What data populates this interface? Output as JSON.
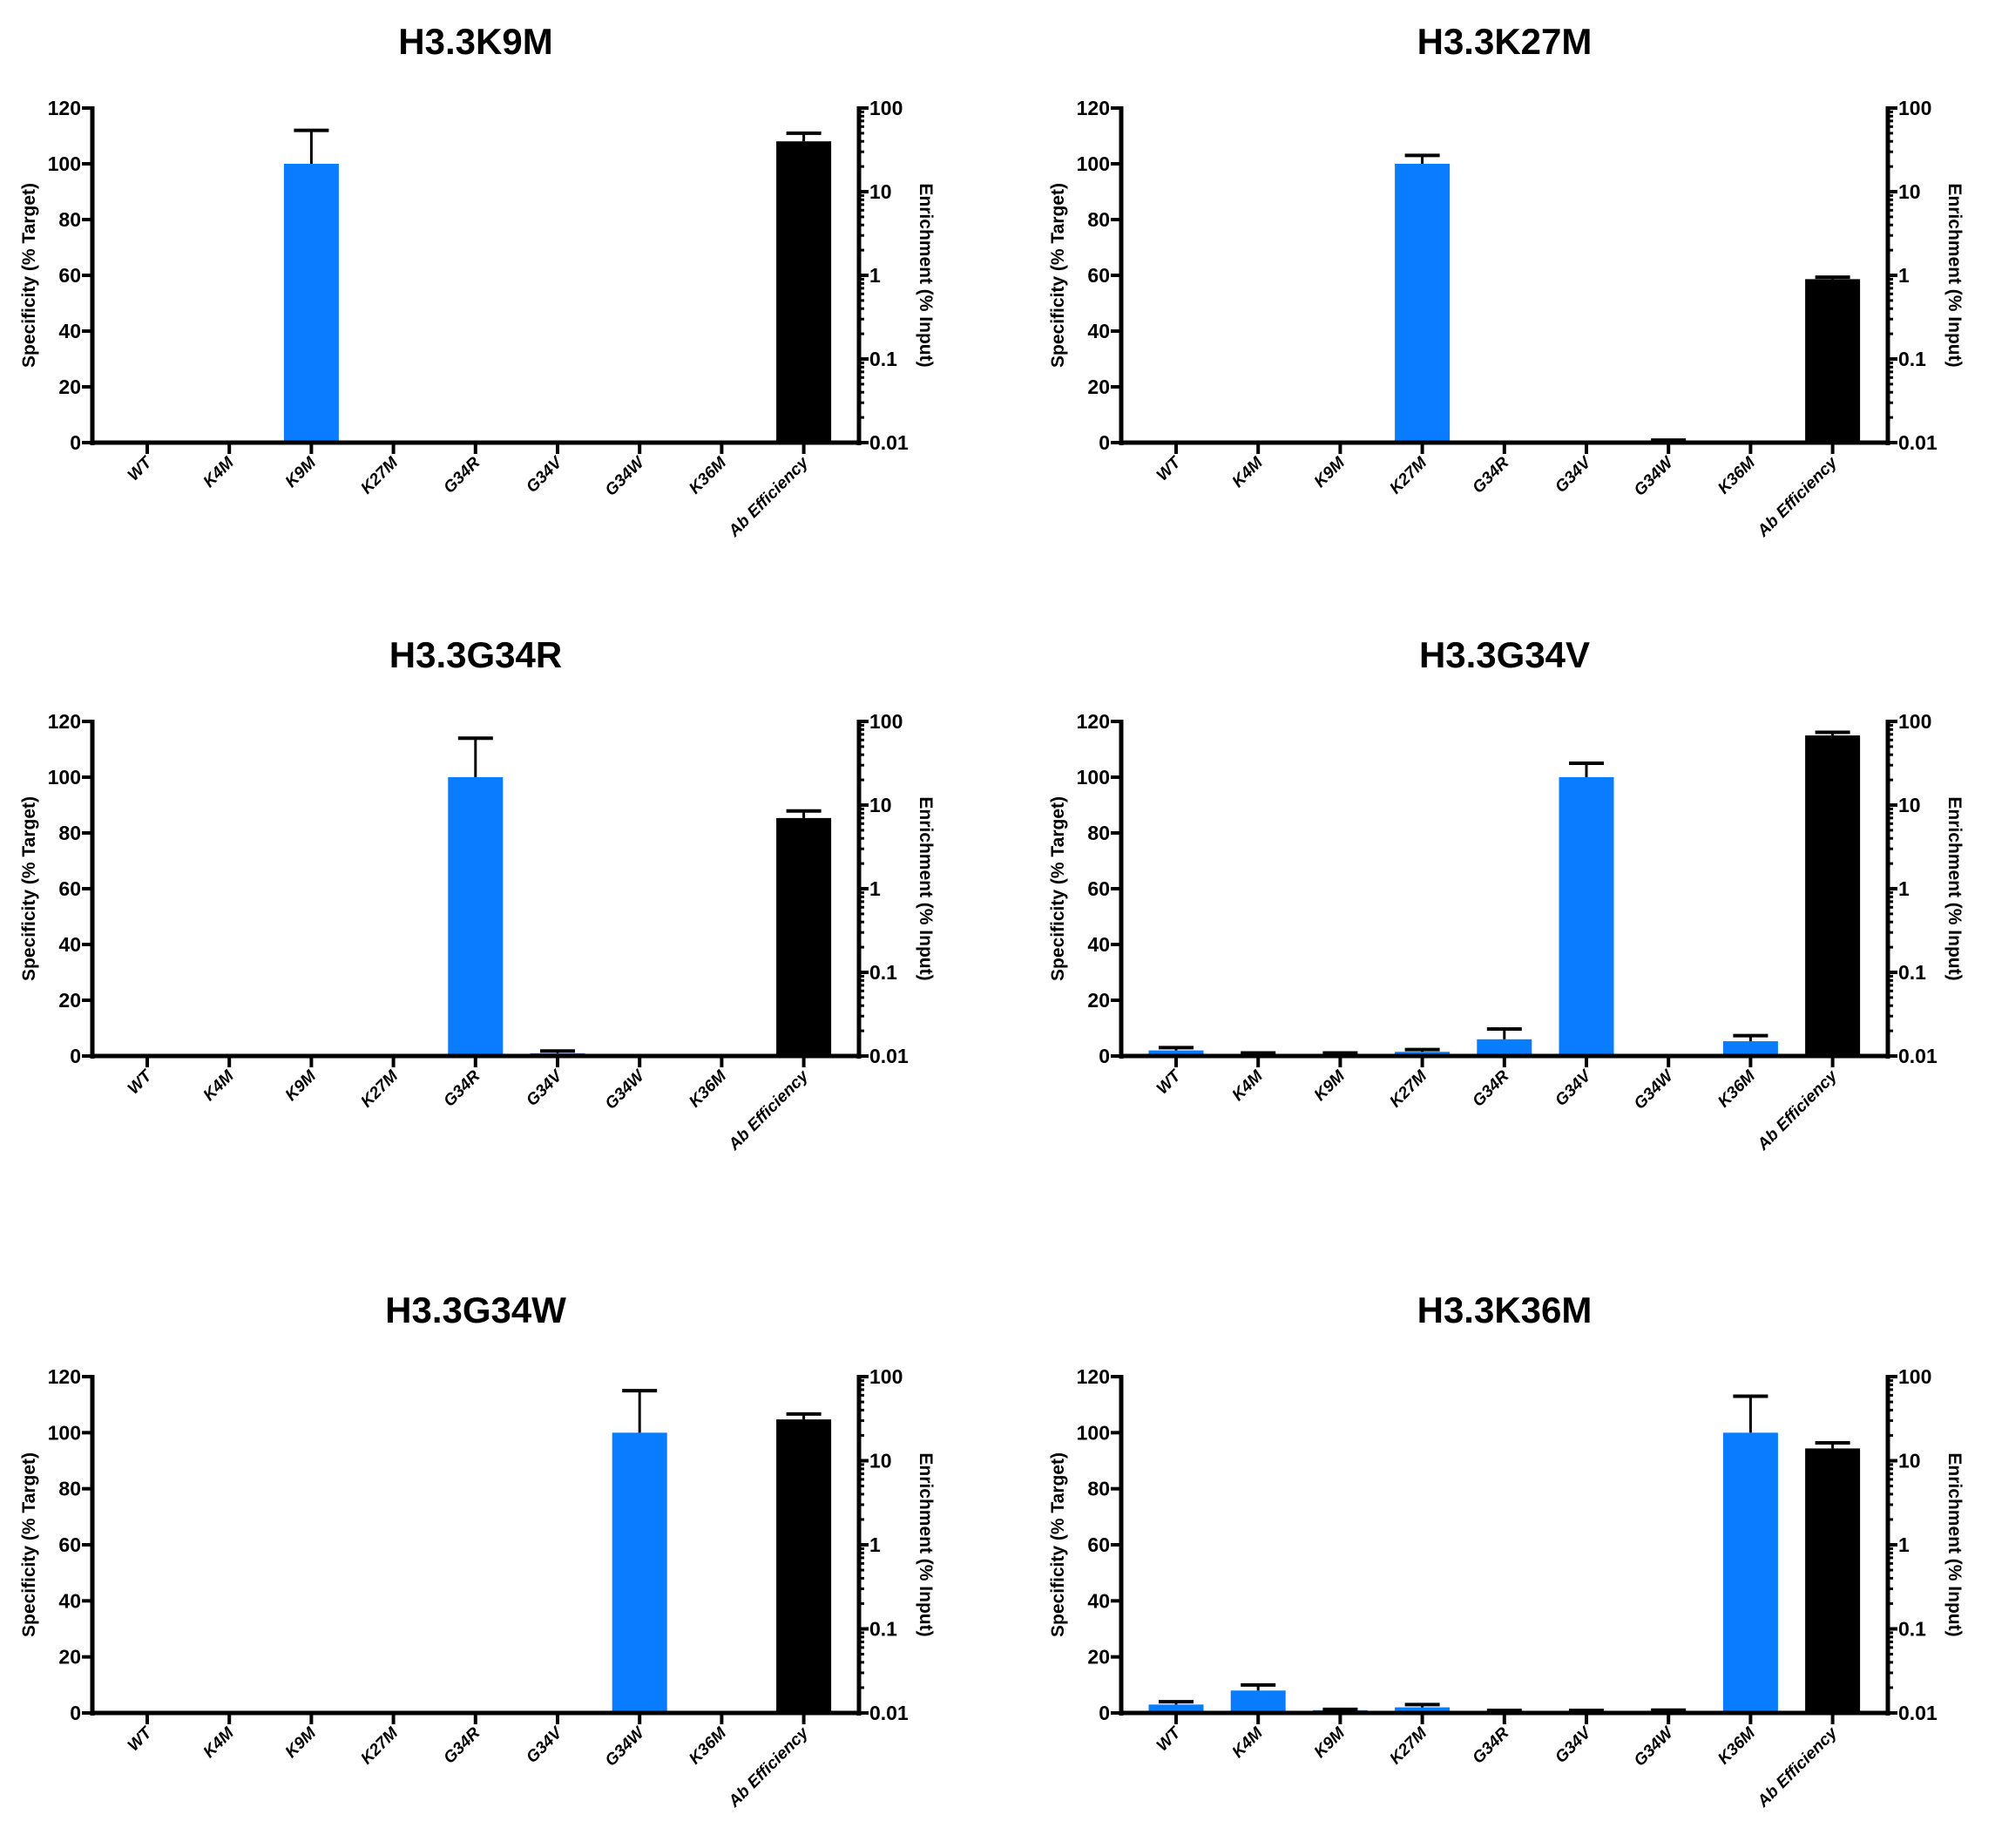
{
  "chart_data": [
    {
      "type": "bar",
      "title": "H3.3K9M",
      "categories": [
        "WT",
        "K4M",
        "K9M",
        "K27M",
        "G34R",
        "G34V",
        "G34W",
        "K36M",
        "Ab Efficiency"
      ],
      "ylabel": "Specificity (% Target)",
      "y2label": "Enrichment (% Input)",
      "ylim": [
        0,
        120
      ],
      "yticks": [
        "0",
        "20",
        "40",
        "60",
        "80",
        "100",
        "120"
      ],
      "y2lim": [
        0.01,
        100
      ],
      "y2scale": "log",
      "y2ticks": [
        "0.01",
        "0.1",
        "1",
        "10",
        "100"
      ],
      "series": [
        {
          "name": "Specificity",
          "axis": "left",
          "color": "#0a7cff",
          "values": [
            0,
            0,
            100,
            0,
            0,
            0,
            0,
            0,
            null
          ],
          "errors": [
            0,
            0,
            12,
            0,
            0,
            0,
            0,
            0,
            null
          ]
        },
        {
          "name": "Ab Efficiency",
          "axis": "right",
          "color": "#000000",
          "values": [
            null,
            null,
            null,
            null,
            null,
            null,
            null,
            null,
            40
          ],
          "error_upper": [
            null,
            null,
            null,
            null,
            null,
            null,
            null,
            null,
            50
          ]
        }
      ]
    },
    {
      "type": "bar",
      "title": "H3.3K27M",
      "categories": [
        "WT",
        "K4M",
        "K9M",
        "K27M",
        "G34R",
        "G34V",
        "G34W",
        "K36M",
        "Ab Efficiency"
      ],
      "ylabel": "Specificity (% Target)",
      "y2label": "Enrichment (% Input)",
      "ylim": [
        0,
        120
      ],
      "yticks": [
        "0",
        "20",
        "40",
        "60",
        "80",
        "100",
        "120"
      ],
      "y2lim": [
        0.01,
        100
      ],
      "y2scale": "log",
      "y2ticks": [
        "0.01",
        "0.1",
        "1",
        "10",
        "100"
      ],
      "series": [
        {
          "name": "Specificity",
          "axis": "left",
          "color": "#0a7cff",
          "values": [
            0,
            0,
            0,
            100,
            0,
            0,
            0.3,
            0,
            null
          ],
          "errors": [
            0,
            0,
            0,
            3,
            0,
            0,
            0.6,
            0,
            null
          ]
        },
        {
          "name": "Ab Efficiency",
          "axis": "right",
          "color": "#000000",
          "values": [
            null,
            null,
            null,
            null,
            null,
            null,
            null,
            null,
            0.9
          ],
          "error_upper": [
            null,
            null,
            null,
            null,
            null,
            null,
            null,
            null,
            0.95
          ]
        }
      ]
    },
    {
      "type": "bar",
      "title": "H3.3G34R",
      "categories": [
        "WT",
        "K4M",
        "K9M",
        "K27M",
        "G34R",
        "G34V",
        "G34W",
        "K36M",
        "Ab Efficiency"
      ],
      "ylabel": "Specificity (% Target)",
      "y2label": "Enrichment (% Input)",
      "ylim": [
        0,
        120
      ],
      "yticks": [
        "0",
        "20",
        "40",
        "60",
        "80",
        "100",
        "120"
      ],
      "y2lim": [
        0.01,
        100
      ],
      "y2scale": "log",
      "y2ticks": [
        "0.01",
        "0.1",
        "1",
        "10",
        "100"
      ],
      "series": [
        {
          "name": "Specificity",
          "axis": "left",
          "color": "#0a7cff",
          "values": [
            0,
            0,
            0,
            0.2,
            100,
            1,
            0,
            0,
            null
          ],
          "errors": [
            0,
            0,
            0,
            0,
            14,
            0.8,
            0,
            0,
            null
          ]
        },
        {
          "name": "Ab Efficiency",
          "axis": "right",
          "color": "#000000",
          "values": [
            null,
            null,
            null,
            null,
            null,
            null,
            null,
            null,
            7
          ],
          "error_upper": [
            null,
            null,
            null,
            null,
            null,
            null,
            null,
            null,
            8.5
          ]
        }
      ]
    },
    {
      "type": "bar",
      "title": "H3.3G34V",
      "categories": [
        "WT",
        "K4M",
        "K9M",
        "K27M",
        "G34R",
        "G34V",
        "G34W",
        "K36M",
        "Ab Efficiency"
      ],
      "ylabel": "Specificity (% Target)",
      "y2label": "Enrichment (% Input)",
      "ylim": [
        0,
        120
      ],
      "yticks": [
        "0",
        "20",
        "40",
        "60",
        "80",
        "100",
        "120"
      ],
      "y2lim": [
        0.01,
        100
      ],
      "y2scale": "log",
      "y2ticks": [
        "0.01",
        "0.1",
        "1",
        "10",
        "100"
      ],
      "series": [
        {
          "name": "Specificity",
          "axis": "left",
          "color": "#0a7cff",
          "values": [
            2,
            0.5,
            0.5,
            1.5,
            6,
            100,
            0,
            5.3,
            null
          ],
          "errors": [
            1,
            0.6,
            0.6,
            0.8,
            3.7,
            5,
            0,
            2,
            null
          ]
        },
        {
          "name": "Ab Efficiency",
          "axis": "right",
          "color": "#000000",
          "values": [
            null,
            null,
            null,
            null,
            null,
            null,
            null,
            null,
            68
          ],
          "error_upper": [
            null,
            null,
            null,
            null,
            null,
            null,
            null,
            null,
            74
          ]
        }
      ]
    },
    {
      "type": "bar",
      "title": "H3.3G34W",
      "categories": [
        "WT",
        "K4M",
        "K9M",
        "K27M",
        "G34R",
        "G34V",
        "G34W",
        "K36M",
        "Ab Efficiency"
      ],
      "ylabel": "Specificity (% Target)",
      "y2label": "Enrichment (% Input)",
      "ylim": [
        0,
        120
      ],
      "yticks": [
        "0",
        "20",
        "40",
        "60",
        "80",
        "100",
        "120"
      ],
      "y2lim": [
        0.01,
        100
      ],
      "y2scale": "log",
      "y2ticks": [
        "0.01",
        "0.1",
        "1",
        "10",
        "100"
      ],
      "series": [
        {
          "name": "Specificity",
          "axis": "left",
          "color": "#0a7cff",
          "values": [
            0,
            0,
            0,
            0,
            0,
            0,
            100,
            0,
            null
          ],
          "errors": [
            0,
            0,
            0,
            0,
            0,
            0,
            15,
            0,
            null
          ]
        },
        {
          "name": "Ab Efficiency",
          "axis": "right",
          "color": "#000000",
          "values": [
            null,
            null,
            null,
            null,
            null,
            null,
            null,
            null,
            31
          ],
          "error_upper": [
            null,
            null,
            null,
            null,
            null,
            null,
            null,
            null,
            36
          ]
        }
      ]
    },
    {
      "type": "bar",
      "title": "H3.3K36M",
      "categories": [
        "WT",
        "K4M",
        "K9M",
        "K27M",
        "G34R",
        "G34V",
        "G34W",
        "K36M",
        "Ab Efficiency"
      ],
      "ylabel": "Specificity (% Target)",
      "y2label": "Enrichment (% Input)",
      "ylim": [
        0,
        120
      ],
      "yticks": [
        "0",
        "20",
        "40",
        "60",
        "80",
        "100",
        "120"
      ],
      "y2lim": [
        0.01,
        100
      ],
      "y2scale": "log",
      "y2ticks": [
        "0.01",
        "0.1",
        "1",
        "10",
        "100"
      ],
      "series": [
        {
          "name": "Specificity",
          "axis": "left",
          "color": "#0a7cff",
          "values": [
            3,
            8,
            1,
            2,
            0.5,
            0.6,
            0.7,
            100,
            null
          ],
          "errors": [
            1,
            2,
            0.3,
            1,
            0.4,
            0.3,
            0.3,
            13,
            null
          ]
        },
        {
          "name": "Ab Efficiency",
          "axis": "right",
          "color": "#000000",
          "values": [
            null,
            null,
            null,
            null,
            null,
            null,
            null,
            null,
            14
          ],
          "error_upper": [
            null,
            null,
            null,
            null,
            null,
            null,
            null,
            null,
            16.3
          ]
        }
      ]
    }
  ]
}
